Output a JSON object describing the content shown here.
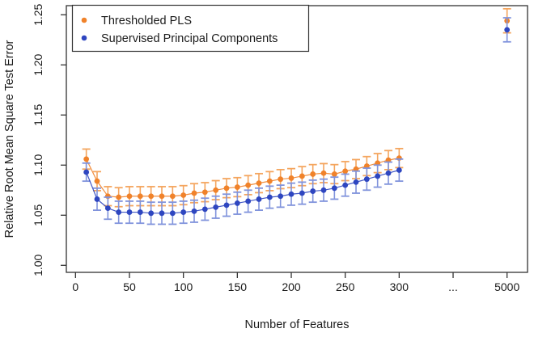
{
  "chart_data": {
    "type": "scatter",
    "title": "",
    "xlabel": "Number of Features",
    "ylabel": "Relative Root Mean Square Test Error",
    "grid": false,
    "legend_position": "top-left",
    "ylim": [
      0.993,
      1.259
    ],
    "y_ticks": [
      1.0,
      1.05,
      1.1,
      1.15,
      1.2,
      1.25
    ],
    "y_tick_labels": [
      "1.00",
      "1.05",
      "1.10",
      "1.15",
      "1.20",
      "1.25"
    ],
    "x_ticks": [
      {
        "label": "0",
        "pos": 0
      },
      {
        "label": "50",
        "pos": 50
      },
      {
        "label": "100",
        "pos": 100
      },
      {
        "label": "150",
        "pos": 150
      },
      {
        "label": "200",
        "pos": 200
      },
      {
        "label": "250",
        "pos": 250
      },
      {
        "label": "300",
        "pos": 300
      },
      {
        "label": "...",
        "pos": 350
      },
      {
        "label": "5000",
        "pos": 400
      }
    ],
    "x_axis_note": "axis broken between 300 and 5000; the 5000 points are drawn at broken-axis position 400",
    "features": [
      10,
      20,
      30,
      40,
      50,
      60,
      70,
      80,
      90,
      100,
      110,
      120,
      130,
      140,
      150,
      160,
      170,
      180,
      190,
      200,
      210,
      220,
      230,
      240,
      250,
      260,
      270,
      280,
      290,
      300,
      5000
    ],
    "plot_positions": [
      10,
      20,
      30,
      40,
      50,
      60,
      70,
      80,
      90,
      100,
      110,
      120,
      130,
      140,
      150,
      160,
      170,
      180,
      190,
      200,
      210,
      220,
      230,
      240,
      250,
      260,
      270,
      280,
      290,
      300,
      400
    ],
    "series": [
      {
        "name": "Thresholded PLS",
        "marker_color": "#F0822A",
        "errorbar_color": "#F4A55E",
        "values": [
          1.106,
          1.084,
          1.069,
          1.068,
          1.069,
          1.069,
          1.069,
          1.069,
          1.069,
          1.07,
          1.072,
          1.073,
          1.075,
          1.077,
          1.078,
          1.08,
          1.082,
          1.084,
          1.086,
          1.087,
          1.089,
          1.091,
          1.092,
          1.091,
          1.094,
          1.096,
          1.099,
          1.102,
          1.105,
          1.107,
          1.244
        ],
        "errors": [
          0.01,
          0.0095,
          0.0095,
          0.0095,
          0.0095,
          0.0095,
          0.0095,
          0.0095,
          0.0095,
          0.0095,
          0.0095,
          0.0095,
          0.0095,
          0.0095,
          0.0095,
          0.0095,
          0.0095,
          0.0095,
          0.0095,
          0.0095,
          0.0095,
          0.0095,
          0.0095,
          0.0095,
          0.0095,
          0.0095,
          0.0095,
          0.0095,
          0.0095,
          0.0095,
          0.012
        ]
      },
      {
        "name": "Supervised Principal Components",
        "marker_color": "#2E46C0",
        "errorbar_color": "#8093DC",
        "values": [
          1.093,
          1.066,
          1.057,
          1.053,
          1.053,
          1.053,
          1.052,
          1.052,
          1.052,
          1.053,
          1.054,
          1.056,
          1.058,
          1.06,
          1.062,
          1.064,
          1.066,
          1.068,
          1.069,
          1.071,
          1.072,
          1.074,
          1.075,
          1.077,
          1.08,
          1.083,
          1.086,
          1.089,
          1.092,
          1.095,
          1.235
        ],
        "errors": [
          0.009,
          0.011,
          0.011,
          0.011,
          0.011,
          0.011,
          0.011,
          0.011,
          0.011,
          0.011,
          0.011,
          0.011,
          0.011,
          0.011,
          0.011,
          0.011,
          0.011,
          0.011,
          0.011,
          0.011,
          0.011,
          0.011,
          0.011,
          0.011,
          0.011,
          0.011,
          0.011,
          0.011,
          0.011,
          0.011,
          0.012
        ]
      }
    ],
    "axis_color": "#333333",
    "background_color": "#ffffff"
  }
}
